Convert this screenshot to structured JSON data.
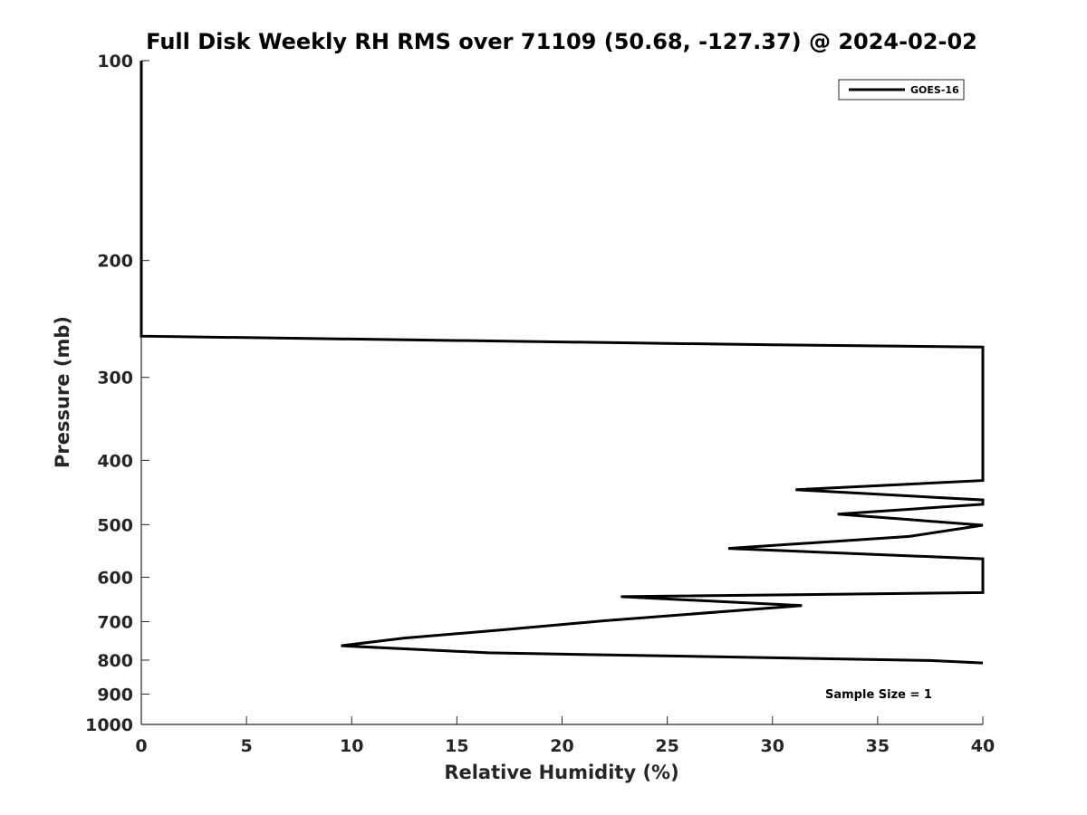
{
  "chart_data": {
    "type": "line",
    "title": "Full Disk Weekly RH RMS over 71109 (50.68, -127.37) @ 2024-02-02",
    "xlabel": "Relative Humidity (%)",
    "ylabel": "Pressure (mb)",
    "xlim": [
      0,
      40
    ],
    "ylim": [
      100,
      1000
    ],
    "y_scale": "log",
    "y_reversed": true,
    "x_ticks": [
      "0",
      "5",
      "10",
      "15",
      "20",
      "25",
      "30",
      "35",
      "40"
    ],
    "y_ticks": [
      "100",
      "200",
      "300",
      "400",
      "500",
      "600",
      "700",
      "800",
      "900",
      "1000"
    ],
    "grid": false,
    "legend": {
      "position": "top-right",
      "entries": [
        "GOES-16"
      ]
    },
    "annotation": "Sample Size = 1",
    "series": [
      {
        "name": "GOES-16",
        "color": "#000000",
        "points": [
          [
            0.0,
            100
          ],
          [
            0.0,
            150
          ],
          [
            0.0,
            200
          ],
          [
            0.0,
            250
          ],
          [
            0.0,
            260
          ],
          [
            30.0,
            268
          ],
          [
            40.0,
            270
          ],
          [
            40.0,
            429
          ],
          [
            31.1,
            443
          ],
          [
            40.0,
            459
          ],
          [
            40.0,
            466
          ],
          [
            33.1,
            482
          ],
          [
            40.0,
            501
          ],
          [
            36.5,
            521
          ],
          [
            27.9,
            543
          ],
          [
            40.0,
            563
          ],
          [
            40.0,
            633
          ],
          [
            22.8,
            642
          ],
          [
            31.4,
            662
          ],
          [
            22.0,
            698
          ],
          [
            17.0,
            721
          ],
          [
            12.5,
            741
          ],
          [
            9.5,
            761
          ],
          [
            16.5,
            780
          ],
          [
            37.5,
            801
          ],
          [
            40.0,
            808
          ]
        ]
      }
    ]
  }
}
